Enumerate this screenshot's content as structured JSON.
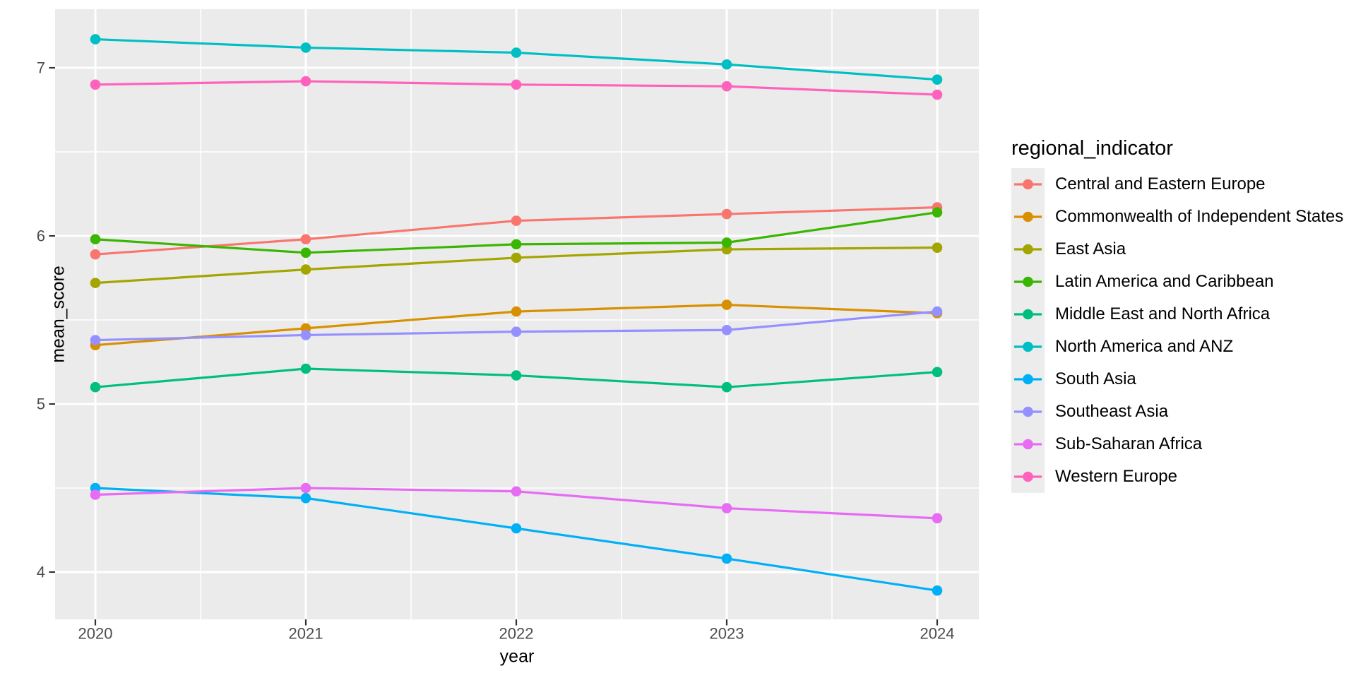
{
  "chart_data": {
    "type": "line",
    "title": "",
    "xlabel": "year",
    "ylabel": "mean_score",
    "legend_title": "regional_indicator",
    "legend_position": "right",
    "grid": true,
    "x": [
      2020,
      2021,
      2022,
      2023,
      2024
    ],
    "x_tick_labels": [
      "2020",
      "2021",
      "2022",
      "2023",
      "2024"
    ],
    "y_tick_values": [
      7,
      6,
      5,
      4
    ],
    "y_tick_labels": [
      "7",
      "6",
      "5",
      "4"
    ],
    "y_minor_values": [
      6.5,
      5.5,
      4.5
    ],
    "x_minor_values": [
      2020.5,
      2021.5,
      2022.5,
      2023.5
    ],
    "xlim": [
      2019.81,
      2024.2
    ],
    "ylim": [
      3.72,
      7.35
    ],
    "series": [
      {
        "name": "Central and Eastern Europe",
        "color": "#F8766D",
        "values": [
          5.89,
          5.98,
          6.09,
          6.13,
          6.17
        ]
      },
      {
        "name": "Commonwealth of Independent States",
        "color": "#D89000",
        "values": [
          5.35,
          5.45,
          5.55,
          5.59,
          5.54
        ]
      },
      {
        "name": "East Asia",
        "color": "#A3A500",
        "values": [
          5.72,
          5.8,
          5.87,
          5.92,
          5.93
        ]
      },
      {
        "name": "Latin America and Caribbean",
        "color": "#39B600",
        "values": [
          5.98,
          5.9,
          5.95,
          5.96,
          6.14
        ]
      },
      {
        "name": "Middle East and North Africa",
        "color": "#00BF7D",
        "values": [
          5.1,
          5.21,
          5.17,
          5.1,
          5.19
        ]
      },
      {
        "name": "North America and ANZ",
        "color": "#00BFC4",
        "values": [
          7.17,
          7.12,
          7.09,
          7.02,
          6.93
        ]
      },
      {
        "name": "South Asia",
        "color": "#00B0F6",
        "values": [
          4.5,
          4.44,
          4.26,
          4.08,
          3.89
        ]
      },
      {
        "name": "Southeast Asia",
        "color": "#9590FF",
        "values": [
          5.38,
          5.41,
          5.43,
          5.44,
          5.55
        ]
      },
      {
        "name": "Sub-Saharan Africa",
        "color": "#E76BF3",
        "values": [
          4.46,
          4.5,
          4.48,
          4.38,
          4.32
        ]
      },
      {
        "name": "Western Europe",
        "color": "#FF62BC",
        "values": [
          6.9,
          6.92,
          6.9,
          6.89,
          6.84
        ]
      }
    ]
  },
  "theme": {
    "panel_bg": "#EBEBEB",
    "grid_color": "#FFFFFF",
    "tick_mark_color": "#333333",
    "tick_label_color": "#4D4D4D",
    "axis_title_color": "#000000",
    "legend_key_bg": "#ECECEC",
    "legend_text_color": "#000000"
  }
}
